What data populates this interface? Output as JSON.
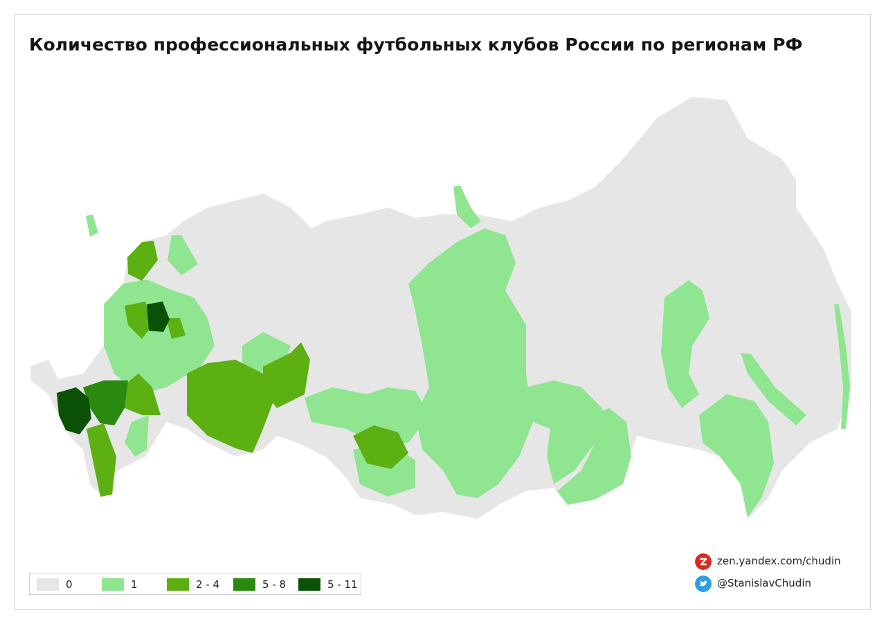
{
  "title": "Количество профессиональных футбольных клубов России по регионам РФ",
  "legend": [
    {
      "label": "0",
      "color": "#e6e6e6"
    },
    {
      "label": "1",
      "color": "#90e590"
    },
    {
      "label": "2 - 4",
      "color": "#5db012"
    },
    {
      "label": "5 - 8",
      "color": "#2a8a10"
    },
    {
      "label": "5 - 11",
      "color": "#0b5208"
    }
  ],
  "credits": {
    "zen": {
      "text": "zen.yandex.com/chudin",
      "icon": "zen-logo-icon",
      "color": "#e0271c"
    },
    "twitter": {
      "text": "@StanislavChudin",
      "icon": "twitter-bird-icon",
      "color": "#2f9ee0"
    }
  },
  "map": {
    "base_color": "#e6e6e6",
    "regions": [
      {
        "name": "Калининградская обл.",
        "class": "1"
      },
      {
        "name": "Мурманская обл.",
        "class": "1"
      },
      {
        "name": "Республика Карелия",
        "class": "2 - 4"
      },
      {
        "name": "Санкт-Петербург",
        "class": "2 - 4"
      },
      {
        "name": "Москва",
        "class": "5 - 11"
      },
      {
        "name": "Краснодарский край",
        "class": "5 - 11"
      },
      {
        "name": "Ростовская обл.",
        "class": "5 - 8"
      },
      {
        "name": "Ставропольский край",
        "class": "2 - 4"
      },
      {
        "name": "Воронежская обл.",
        "class": "2 - 4"
      },
      {
        "name": "Республика Татарстан",
        "class": "2 - 4"
      },
      {
        "name": "Самарская обл.",
        "class": "2 - 4"
      },
      {
        "name": "Пермский край",
        "class": "2 - 4"
      },
      {
        "name": "Новосибирская обл.",
        "class": "2 - 4"
      },
      {
        "name": "Красноярский край",
        "class": "1"
      },
      {
        "name": "Иркутская обл.",
        "class": "1"
      },
      {
        "name": "Забайкальский край",
        "class": "1"
      },
      {
        "name": "Хабаровский край",
        "class": "1"
      },
      {
        "name": "Приморский край",
        "class": "1"
      },
      {
        "name": "Магаданская обл.",
        "class": "1"
      },
      {
        "name": "Сахалинская обл.",
        "class": "1"
      },
      {
        "name": "Омская обл.",
        "class": "1"
      },
      {
        "name": "Тюменская обл.",
        "class": "1"
      },
      {
        "name": "Алтайский край",
        "class": "1"
      }
    ]
  }
}
